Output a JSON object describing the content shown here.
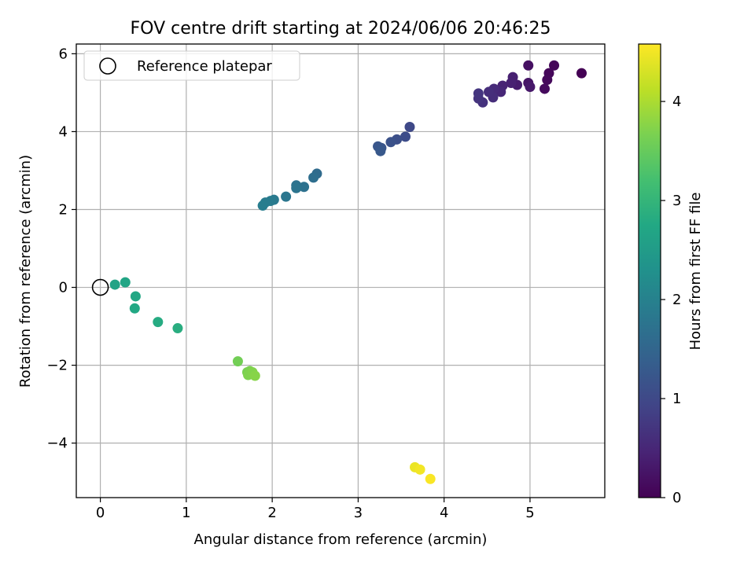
{
  "chart_data": {
    "type": "scatter",
    "title": "FOV centre drift starting at 2024/06/06 20:46:25",
    "xlabel": "Angular distance from reference (arcmin)",
    "ylabel": "Rotation from reference (arcmin)",
    "xlim": [
      -0.28,
      5.87
    ],
    "ylim": [
      -5.4,
      6.25
    ],
    "xticks": [
      0,
      1,
      2,
      3,
      4,
      5
    ],
    "yticks": [
      -4,
      -2,
      0,
      2,
      4,
      6
    ],
    "xtick_labels": [
      "0",
      "1",
      "2",
      "3",
      "4",
      "5"
    ],
    "ytick_labels": [
      "−4",
      "−2",
      "0",
      "2",
      "4",
      "6"
    ],
    "grid": true,
    "legend": {
      "position": "top-left",
      "entries": [
        {
          "label": "Reference platepar",
          "marker": "open-circle"
        }
      ]
    },
    "reference_point": {
      "x": 0,
      "y": 0
    },
    "colorbar": {
      "label": "Hours from first FF file",
      "colormap": "viridis",
      "range": [
        0,
        4.58
      ],
      "ticks": [
        0,
        1,
        2,
        3,
        4
      ],
      "tick_labels": [
        "0",
        "1",
        "2",
        "3",
        "4"
      ]
    },
    "points": [
      {
        "x": 5.6,
        "y": 5.5,
        "c": 0.0
      },
      {
        "x": 5.28,
        "y": 5.7,
        "c": 0.05
      },
      {
        "x": 5.22,
        "y": 5.5,
        "c": 0.08
      },
      {
        "x": 5.2,
        "y": 5.33,
        "c": 0.1
      },
      {
        "x": 5.17,
        "y": 5.1,
        "c": 0.12
      },
      {
        "x": 4.98,
        "y": 5.7,
        "c": 0.2
      },
      {
        "x": 4.98,
        "y": 5.25,
        "c": 0.25
      },
      {
        "x": 5.0,
        "y": 5.15,
        "c": 0.3
      },
      {
        "x": 4.85,
        "y": 5.2,
        "c": 0.35
      },
      {
        "x": 4.8,
        "y": 5.4,
        "c": 0.4
      },
      {
        "x": 4.78,
        "y": 5.25,
        "c": 0.42
      },
      {
        "x": 4.68,
        "y": 5.18,
        "c": 0.45
      },
      {
        "x": 4.66,
        "y": 5.02,
        "c": 0.5
      },
      {
        "x": 4.58,
        "y": 5.1,
        "c": 0.55
      },
      {
        "x": 4.57,
        "y": 4.88,
        "c": 0.58
      },
      {
        "x": 4.52,
        "y": 5.02,
        "c": 0.6
      },
      {
        "x": 4.45,
        "y": 4.75,
        "c": 0.65
      },
      {
        "x": 4.4,
        "y": 4.85,
        "c": 0.68
      },
      {
        "x": 4.4,
        "y": 4.98,
        "c": 0.7
      },
      {
        "x": 3.6,
        "y": 4.12,
        "c": 1.0
      },
      {
        "x": 3.55,
        "y": 3.87,
        "c": 1.05
      },
      {
        "x": 3.45,
        "y": 3.8,
        "c": 1.1
      },
      {
        "x": 3.38,
        "y": 3.73,
        "c": 1.15
      },
      {
        "x": 3.27,
        "y": 3.58,
        "c": 1.2
      },
      {
        "x": 3.23,
        "y": 3.62,
        "c": 1.22
      },
      {
        "x": 3.26,
        "y": 3.5,
        "c": 1.25
      },
      {
        "x": 2.52,
        "y": 2.92,
        "c": 1.6
      },
      {
        "x": 2.48,
        "y": 2.82,
        "c": 1.65
      },
      {
        "x": 2.37,
        "y": 2.58,
        "c": 1.7
      },
      {
        "x": 2.28,
        "y": 2.62,
        "c": 1.72
      },
      {
        "x": 2.28,
        "y": 2.55,
        "c": 1.75
      },
      {
        "x": 2.16,
        "y": 2.33,
        "c": 1.8
      },
      {
        "x": 2.02,
        "y": 2.25,
        "c": 1.85
      },
      {
        "x": 1.98,
        "y": 2.22,
        "c": 1.88
      },
      {
        "x": 1.92,
        "y": 2.18,
        "c": 1.9
      },
      {
        "x": 1.89,
        "y": 2.1,
        "c": 1.92
      },
      {
        "x": 0.17,
        "y": 0.07,
        "c": 2.65
      },
      {
        "x": 0.29,
        "y": 0.13,
        "c": 2.68
      },
      {
        "x": 0.41,
        "y": -0.23,
        "c": 2.72
      },
      {
        "x": 0.4,
        "y": -0.54,
        "c": 2.75
      },
      {
        "x": 0.67,
        "y": -0.89,
        "c": 2.8
      },
      {
        "x": 0.9,
        "y": -1.05,
        "c": 2.85
      },
      {
        "x": 1.6,
        "y": -1.9,
        "c": 3.6
      },
      {
        "x": 1.71,
        "y": -2.18,
        "c": 3.65
      },
      {
        "x": 1.74,
        "y": -2.15,
        "c": 3.67
      },
      {
        "x": 1.72,
        "y": -2.25,
        "c": 3.7
      },
      {
        "x": 1.77,
        "y": -2.18,
        "c": 3.72
      },
      {
        "x": 1.8,
        "y": -2.27,
        "c": 3.75
      },
      {
        "x": 3.66,
        "y": -4.62,
        "c": 4.45
      },
      {
        "x": 3.72,
        "y": -4.68,
        "c": 4.5
      },
      {
        "x": 3.84,
        "y": -4.92,
        "c": 4.55
      }
    ]
  }
}
